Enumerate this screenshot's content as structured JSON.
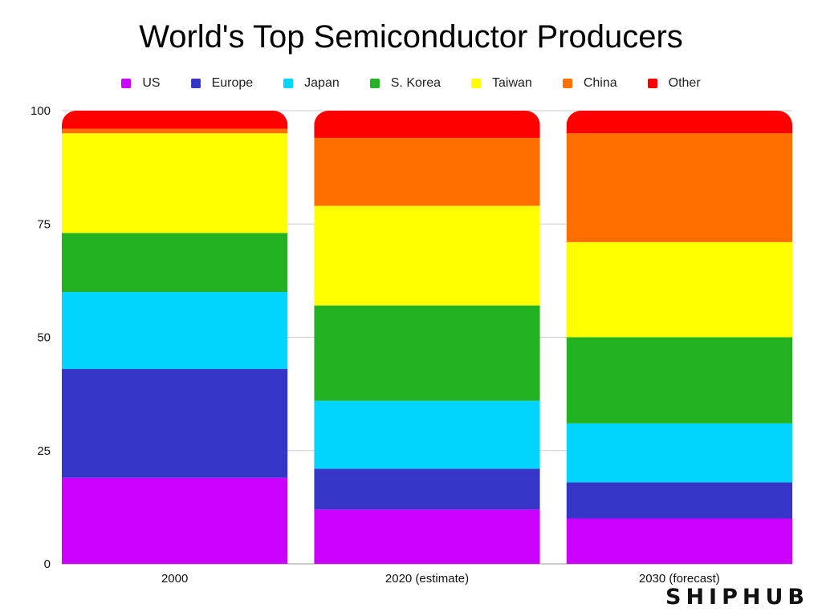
{
  "chart_data": {
    "type": "bar",
    "stacked": true,
    "title": "World's Top Semiconductor Producers",
    "categories": [
      "2000",
      "2020 (estimate)",
      "2030 (forecast)"
    ],
    "series": [
      {
        "name": "US",
        "color": "#cc00ff",
        "values": [
          19,
          12,
          10
        ]
      },
      {
        "name": "Europe",
        "color": "#3535c8",
        "values": [
          24,
          9,
          8
        ]
      },
      {
        "name": "Japan",
        "color": "#00d4ff",
        "values": [
          17,
          15,
          13
        ]
      },
      {
        "name": "S. Korea",
        "color": "#22b222",
        "values": [
          13,
          21,
          19
        ]
      },
      {
        "name": "Taiwan",
        "color": "#ffff00",
        "values": [
          22,
          22,
          21
        ]
      },
      {
        "name": "China",
        "color": "#ff6f00",
        "values": [
          1,
          15,
          24
        ]
      },
      {
        "name": "Other",
        "color": "#ff0000",
        "values": [
          4,
          6,
          5
        ]
      }
    ],
    "ylim": [
      0,
      100
    ],
    "yticks": [
      "0",
      "25",
      "50",
      "75",
      "100"
    ],
    "grid": true,
    "legend_position": "top-center"
  },
  "watermark": "SHIPHUB"
}
